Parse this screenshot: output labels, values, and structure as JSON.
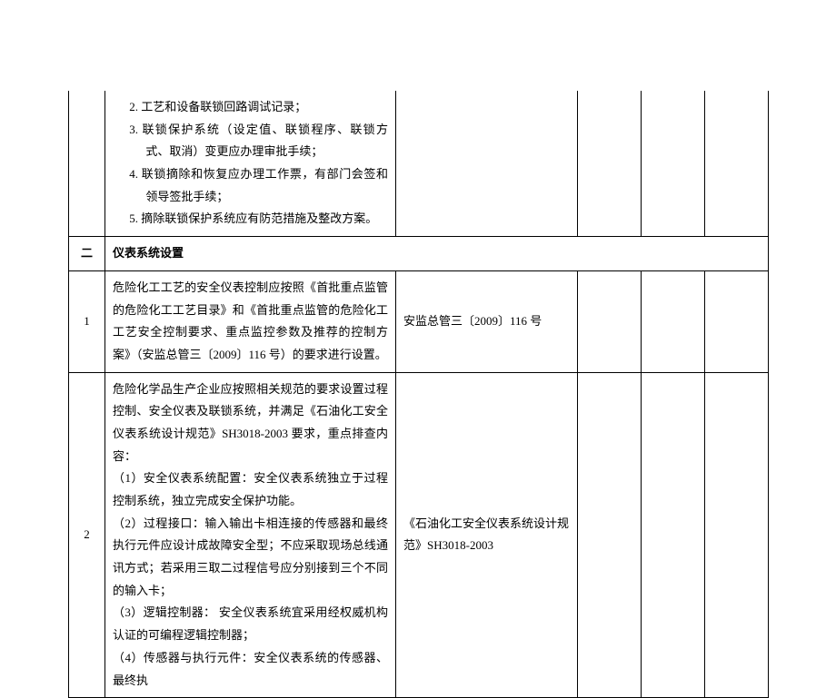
{
  "table": {
    "row0": {
      "lines": [
        "2.  工艺和设备联锁回路调试记录；",
        "3.  联锁保护系统（设定值、联锁程序、联锁方式、取消）变更应办理审批手续；",
        "4.  联锁摘除和恢复应办理工作票，有部门会签和领导签批手续；",
        "5.  摘除联锁保护系统应有防范措施及整改方案。"
      ],
      "col3": "",
      "col4": "",
      "col5": "",
      "col6": ""
    },
    "section": {
      "num": "二",
      "title": "仪表系统设置"
    },
    "row1": {
      "num": "1",
      "content": "危险化工工艺的安全仪表控制应按照《首批重点监管的危险化工工艺目录》和《首批重点监管的危险化工工艺安全控制要求、重点监控参数及推荐的控制方案》（安监总管三〔2009〕116 号）的要求进行设置。",
      "ref": "安监总管三〔2009〕116 号",
      "col4": "",
      "col5": "",
      "col6": ""
    },
    "row2": {
      "num": "2",
      "lines": [
        "危险化学品生产企业应按照相关规范的要求设置过程控制、安全仪表及联锁系统，并满足《石油化工安全仪表系统设计规范》SH3018-2003 要求，重点排查内容：",
        "（1）安全仪表系统配置：安全仪表系统独立于过程控制系统，独立完成安全保护功能。",
        "（2）过程接口：输入输出卡相连接的传感器和最终执行元件应设计成故障安全型；不应采取现场总线通讯方式；若采用三取二过程信号应分别接到三个不同的输入卡；",
        "（3）逻辑控制器： 安全仪表系统宜采用经权威机构认证的可编程逻辑控制器；",
        "（4）传感器与执行元件：安全仪表系统的传感器、最终执"
      ],
      "ref": "《石油化工安全仪表系统设计规范》SH3018-2003",
      "col4": "",
      "col5": "",
      "col6": ""
    }
  }
}
